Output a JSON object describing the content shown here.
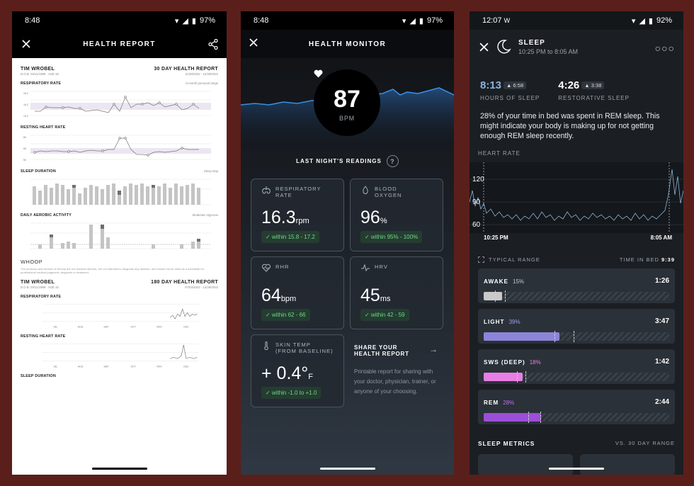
{
  "phone1": {
    "status": {
      "time": "8:48",
      "battery": "97%"
    },
    "title": "HEALTH REPORT",
    "name": "TIM WROBEL",
    "report_30": "30 DAY HEALTH REPORT",
    "dob": "D.O.B. 03/11/1989 · AGE 33",
    "range_30": "11/30/2022 - 12/29/2022",
    "sections": {
      "resp": "RESPIRATORY RATE",
      "rhr": "RESTING HEART RATE",
      "sleep": "SLEEP DURATION",
      "aerobic": "DAILY AEROBIC ACTIVITY"
    },
    "whoop": "WHOOP",
    "whoop_note": "The products and devices of Whoop are not medical devices, are not intended to diagnose any disease, and should not be used as a substitute for professional medical judgment, diagnosis or treatment.",
    "report_180": "180 DAY HEALTH REPORT",
    "range_180": "07/03/2022 - 12/29/2022",
    "months": [
      "JUL.",
      "AUG.",
      "SEP.",
      "OCT.",
      "NOV.",
      "DEC."
    ],
    "sleep_duration_tail": "SLEEP DURATION",
    "legend_range": "6-month personal range",
    "legend_sleep": "Sleep    Nap",
    "legend_aerobic": "Moderate    Vigorous"
  },
  "phone2": {
    "status": {
      "time": "8:48",
      "battery": "97%"
    },
    "title": "HEALTH MONITOR",
    "bpm_value": "87",
    "bpm_unit": "BPM",
    "readings_title": "LAST NIGHT'S READINGS",
    "help": "?",
    "cards": {
      "resp": {
        "label1": "RESPIRATORY",
        "label2": "RATE",
        "value": "16.3",
        "unit": "rpm",
        "badge": "✓  within 15.8 - 17.2"
      },
      "oxygen": {
        "label1": "BLOOD",
        "label2": "OXYGEN",
        "value": "96",
        "unit": "%",
        "badge": "✓  within 95% - 100%"
      },
      "rhr": {
        "label1": "RHR",
        "label2": "",
        "value": "64",
        "unit": "bpm",
        "badge": "✓  within 62 - 66"
      },
      "hrv": {
        "label1": "HRV",
        "label2": "",
        "value": "45",
        "unit": "ms",
        "badge": "✓  within 42 - 59"
      },
      "skin": {
        "label1": "SKIN TEMP",
        "label2": "(FROM BASELINE)",
        "value": "+ 0.4°",
        "unit": "F",
        "badge": "✓  within -1.0 to +1.0"
      }
    },
    "share": {
      "title1": "SHARE YOUR",
      "title2": "HEALTH REPORT",
      "desc": "Printable report for sharing with your doctor, physician, trainer, or anyone of your choosing."
    }
  },
  "phone3": {
    "status": {
      "time": "12:07",
      "battery": "92%"
    },
    "title": "SLEEP",
    "time_range": "10:25 PM to 8:05 AM",
    "hours_value": "8:13",
    "hours_delta": "▲ 6:58",
    "hours_label": "HOURS OF SLEEP",
    "restore_value": "4:26",
    "restore_delta": "▲ 3:38",
    "restore_label": "RESTORATIVE SLEEP",
    "insight": "28% of your time in bed was spent in REM sleep. This might indicate your body is making up for not getting enough REM sleep recently.",
    "hr_label": "HEART RATE",
    "hr_ticks": [
      "120",
      "90",
      "60"
    ],
    "start_time": "10:25 PM",
    "end_time": "8:05 AM",
    "typical_range": "TYPICAL RANGE",
    "time_in_bed_label": "TIME IN BED",
    "time_in_bed": "9:39",
    "stages": [
      {
        "name": "AWAKE",
        "pct": "15%",
        "time": "1:26",
        "color": "#c9c9c9",
        "pct_color": "#c9c9c9",
        "fill": 0.1
      },
      {
        "name": "LIGHT",
        "pct": "39%",
        "time": "3:47",
        "color": "#8c84d8",
        "pct_color": "#a59cf0",
        "fill": 0.41
      },
      {
        "name": "SWS (DEEP)",
        "pct": "18%",
        "time": "1:42",
        "color": "#e67ee3",
        "pct_color": "#e67ee3",
        "fill": 0.21
      },
      {
        "name": "REM",
        "pct": "28%",
        "time": "2:44",
        "color": "#9b4fd8",
        "pct_color": "#b872f0",
        "fill": 0.31
      }
    ],
    "metrics_title": "SLEEP METRICS",
    "metrics_compare": "VS. 30 DAY RANGE"
  }
}
